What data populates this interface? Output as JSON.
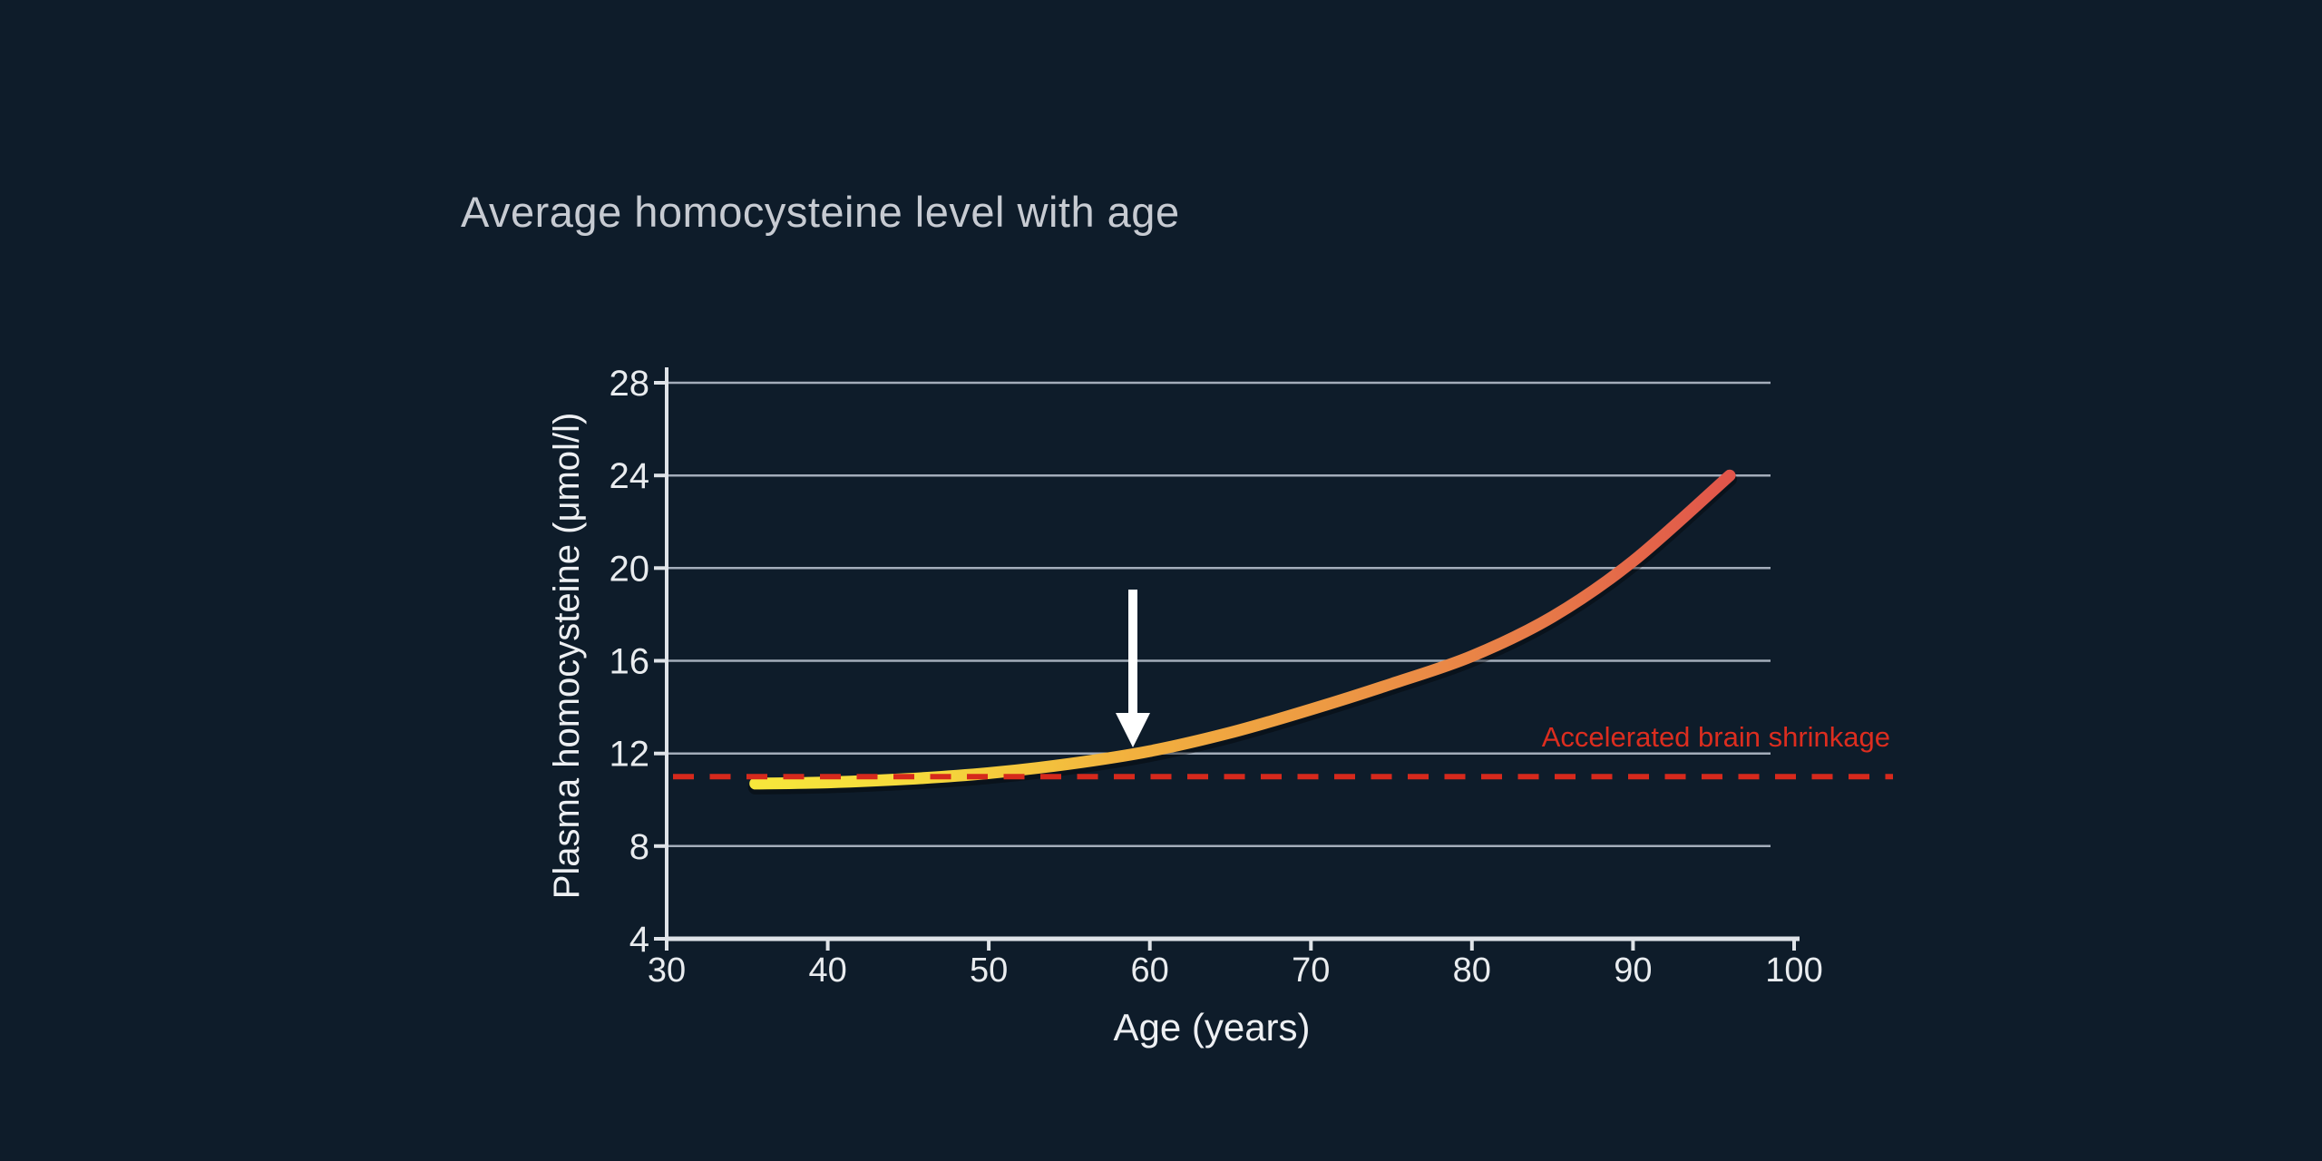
{
  "page": {
    "background_color": "#0e1c2a"
  },
  "chart_data": {
    "type": "line",
    "title": "Average homocysteine level with age",
    "xlabel": "Age (years)",
    "ylabel": "Plasma homocysteine  (μmol/l)",
    "xlim": [
      30,
      100
    ],
    "ylim": [
      4,
      28
    ],
    "xticks": [
      30,
      40,
      50,
      60,
      70,
      80,
      90,
      100
    ],
    "yticks": [
      28,
      24,
      20,
      16,
      12,
      8,
      4
    ],
    "grid": true,
    "gridline_color": "#a3adba",
    "axis_color": "#dfe3e8",
    "legend": "none",
    "series": [
      {
        "name": "average-homocysteine-curve",
        "x": [
          35.5,
          40,
          45,
          50,
          55,
          60,
          65,
          70,
          75,
          80,
          85,
          90,
          96
        ],
        "y": [
          10.7,
          10.75,
          10.9,
          11.15,
          11.55,
          12.1,
          12.9,
          13.9,
          15.0,
          16.2,
          17.9,
          20.3,
          24.0
        ],
        "gradient_colors": [
          "#f7e73b",
          "#f5d83c",
          "#f2b13e",
          "#ed9a43",
          "#e77a48",
          "#e0544a"
        ]
      }
    ],
    "reference_line": {
      "value": 11,
      "style": "dashed",
      "color": "#d6291c",
      "label": "Accelerated brain shrinkage",
      "label_color": "#dc2d1f"
    },
    "annotation_arrow": {
      "x": 59,
      "points_to_y": 12,
      "direction": "down",
      "color": "#ffffff"
    }
  }
}
